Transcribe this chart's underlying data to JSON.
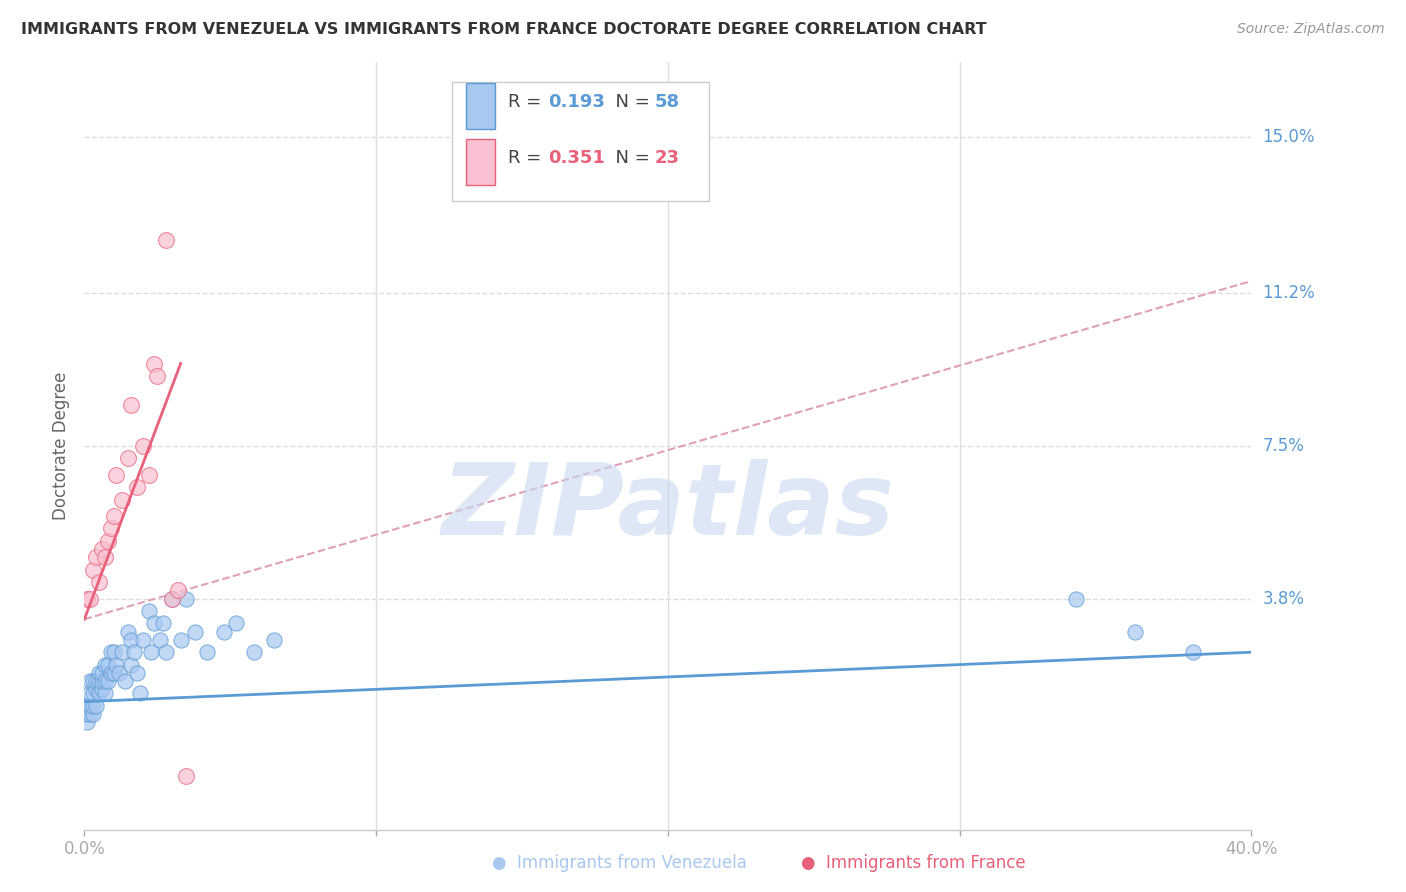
{
  "title": "IMMIGRANTS FROM VENEZUELA VS IMMIGRANTS FROM FRANCE DOCTORATE DEGREE CORRELATION CHART",
  "source": "Source: ZipAtlas.com",
  "ylabel": "Doctorate Degree",
  "ytick_labels": [
    "15.0%",
    "11.2%",
    "7.5%",
    "3.8%"
  ],
  "ytick_values": [
    0.15,
    0.112,
    0.075,
    0.038
  ],
  "xmin": 0.0,
  "xmax": 0.4,
  "ymin": -0.018,
  "ymax": 0.168,
  "legend_blue_R": "0.193",
  "legend_blue_N": "58",
  "legend_pink_R": "0.351",
  "legend_pink_N": "23",
  "color_blue_fill": "#A8C8F0",
  "color_pink_fill": "#F8C0D0",
  "color_line_blue": "#5B9BD5",
  "color_line_pink": "#E8607A",
  "color_dashed_pink": "#E0A0B8",
  "color_ytick": "#5B9BD5",
  "color_title": "#333333",
  "watermark_text": "ZIPatlas",
  "watermark_color": "#C8D8F0",
  "venezuela_x": [
    0.001,
    0.001,
    0.001,
    0.002,
    0.002,
    0.002,
    0.002,
    0.003,
    0.003,
    0.003,
    0.003,
    0.004,
    0.004,
    0.004,
    0.005,
    0.005,
    0.005,
    0.006,
    0.006,
    0.006,
    0.007,
    0.007,
    0.007,
    0.008,
    0.008,
    0.009,
    0.009,
    0.01,
    0.01,
    0.011,
    0.012,
    0.013,
    0.014,
    0.015,
    0.016,
    0.016,
    0.017,
    0.018,
    0.019,
    0.02,
    0.022,
    0.023,
    0.024,
    0.026,
    0.027,
    0.028,
    0.03,
    0.033,
    0.035,
    0.038,
    0.042,
    0.048,
    0.052,
    0.058,
    0.065,
    0.34,
    0.36,
    0.38
  ],
  "venezuela_y": [
    0.008,
    0.01,
    0.012,
    0.01,
    0.012,
    0.015,
    0.018,
    0.01,
    0.012,
    0.015,
    0.018,
    0.012,
    0.016,
    0.018,
    0.015,
    0.018,
    0.02,
    0.016,
    0.018,
    0.02,
    0.015,
    0.018,
    0.022,
    0.018,
    0.022,
    0.02,
    0.025,
    0.02,
    0.025,
    0.022,
    0.02,
    0.025,
    0.018,
    0.03,
    0.022,
    0.028,
    0.025,
    0.02,
    0.015,
    0.028,
    0.035,
    0.025,
    0.032,
    0.028,
    0.032,
    0.025,
    0.038,
    0.028,
    0.038,
    0.03,
    0.025,
    0.03,
    0.032,
    0.025,
    0.028,
    0.038,
    0.03,
    0.025
  ],
  "france_x": [
    0.001,
    0.002,
    0.003,
    0.004,
    0.005,
    0.006,
    0.007,
    0.008,
    0.009,
    0.01,
    0.011,
    0.013,
    0.015,
    0.016,
    0.018,
    0.02,
    0.022,
    0.024,
    0.025,
    0.028,
    0.03,
    0.032,
    0.035
  ],
  "france_y": [
    0.038,
    0.038,
    0.045,
    0.048,
    0.042,
    0.05,
    0.048,
    0.052,
    0.055,
    0.058,
    0.068,
    0.062,
    0.072,
    0.085,
    0.065,
    0.075,
    0.068,
    0.095,
    0.092,
    0.125,
    0.038,
    0.04,
    -0.005
  ],
  "blue_line_x": [
    0.0,
    0.4
  ],
  "blue_line_y": [
    0.013,
    0.025
  ],
  "pink_line_x": [
    0.0,
    0.033
  ],
  "pink_line_y": [
    0.033,
    0.095
  ],
  "dashed_line_x": [
    0.0,
    0.4
  ],
  "dashed_line_y": [
    0.033,
    0.115
  ]
}
